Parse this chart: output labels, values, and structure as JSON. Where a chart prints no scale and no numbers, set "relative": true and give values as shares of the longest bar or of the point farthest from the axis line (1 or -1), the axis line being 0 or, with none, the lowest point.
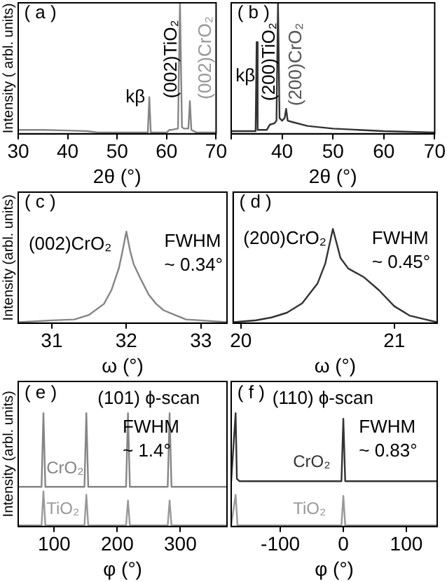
{
  "chart_data": [
    {
      "type": "line",
      "relative": true,
      "ylabel": "Intensity ( arbl. units)",
      "xlabel": "2θ (°)",
      "xlim": [
        30,
        70
      ],
      "xticks": [
        30,
        40,
        50,
        60,
        70
      ],
      "grid": false,
      "legend": false,
      "marker": "none",
      "annotations": [
        "( a )",
        {
          "text": "kβ",
          "x": 56.5,
          "y": 0.28
        },
        {
          "text": "(002)TiO₂",
          "x": 62.7,
          "y": 0.57
        },
        "(002)CrO₂"
      ],
      "series": [
        {
          "color": "#858585",
          "x": [
            30,
            35,
            40,
            44,
            46,
            50,
            55,
            56.2,
            56.5,
            56.8,
            58,
            60,
            60.6,
            61,
            62.3,
            62.7,
            63.1,
            63.5,
            64.4,
            64.7,
            65.0,
            66,
            70
          ],
          "values": [
            0.03,
            0.03,
            0.025,
            0.02,
            0.01,
            0.01,
            0.01,
            0.01,
            0.28,
            0.01,
            0.01,
            0.01,
            0.03,
            0.03,
            0.04,
            1,
            0.05,
            0.04,
            0.04,
            0.25,
            0.03,
            0.01,
            0.01
          ]
        }
      ]
    },
    {
      "type": "line",
      "relative": true,
      "xlabel": "2θ (°)",
      "xlim": [
        30,
        70
      ],
      "xticks": [
        {
          "value": 30,
          "label": null
        },
        40,
        50,
        60,
        70
      ],
      "grid": false,
      "legend": false,
      "marker": "none",
      "annotations": [
        "( b )",
        {
          "text": "kβ",
          "x": 35,
          "y": 0.44
        },
        {
          "text": "(200)TiO₂",
          "x": 39.2,
          "y": 0.55
        },
        {
          "text": "(200)CrO₂",
          "x": 40.8,
          "y": 0.53
        }
      ],
      "series": [
        {
          "color": "#333333",
          "x": [
            30,
            33,
            34.8,
            35,
            35.2,
            37,
            37.6,
            38.5,
            38.9,
            39.2,
            39.5,
            40,
            40.5,
            40.8,
            41.1,
            42,
            45,
            50,
            55,
            60,
            70
          ],
          "values": [
            0.02,
            0.02,
            0.02,
            0.7,
            0.03,
            0.03,
            0.07,
            0.08,
            0.1,
            1,
            0.12,
            0.1,
            0.12,
            0.19,
            0.1,
            0.09,
            0.06,
            0.04,
            0.03,
            0.02,
            0.01
          ]
        }
      ]
    },
    {
      "type": "line",
      "relative": true,
      "ylabel": "Intensity (arbl. units)",
      "xlabel": "ω (°)",
      "xlim": [
        30.55,
        33.35
      ],
      "xticks": [
        31,
        32,
        33
      ],
      "grid": false,
      "legend": false,
      "marker": "none",
      "annotations": [
        "( c )",
        "(002)CrO₂",
        "FWHM\n~ 0.34°"
      ],
      "series": [
        {
          "color": "#858585",
          "x": [
            30.55,
            31.0,
            31.3,
            31.5,
            31.7,
            31.8,
            31.9,
            31.95,
            32.0,
            32.05,
            32.1,
            32.2,
            32.3,
            32.4,
            32.5,
            32.65,
            32.8,
            33.0,
            33.35
          ],
          "values": [
            0.01,
            0.03,
            0.04,
            0.09,
            0.21,
            0.36,
            0.6,
            0.79,
            1,
            0.79,
            0.64,
            0.47,
            0.31,
            0.21,
            0.14,
            0.09,
            0.04,
            0.03,
            0.01
          ]
        }
      ]
    },
    {
      "type": "line",
      "relative": true,
      "xlabel": "ω (°)",
      "xlim": [
        19.95,
        21.28
      ],
      "xticks": [
        20,
        21
      ],
      "grid": false,
      "legend": false,
      "marker": "none",
      "annotations": [
        "( d )",
        "(200)CrO₂",
        "FWHM\n~ 0.45°"
      ],
      "series": [
        {
          "color": "#333333",
          "x": [
            19.95,
            20.1,
            20.2,
            20.3,
            20.4,
            20.5,
            20.55,
            20.6,
            20.65,
            20.7,
            20.8,
            20.9,
            21.0,
            21.1,
            21.2,
            21.28
          ],
          "values": [
            0.01,
            0.03,
            0.06,
            0.11,
            0.21,
            0.42,
            0.63,
            1,
            0.69,
            0.58,
            0.49,
            0.35,
            0.18,
            0.08,
            0.04,
            0.01
          ]
        }
      ]
    },
    {
      "type": "line",
      "relative": true,
      "ylabel": "Intensity (arbl. units)",
      "xlabel": "φ (°)",
      "xlim": [
        43,
        374
      ],
      "xticks": [
        100,
        200,
        300
      ],
      "grid": false,
      "legend": false,
      "marker": "none",
      "annotations": [
        "( e )",
        "(101) ϕ-scan",
        "FWHM\n~ 1.4°"
      ],
      "series": [
        {
          "name": "CrO₂",
          "color": "#858585",
          "x": [
            43,
            80,
            83,
            86,
            148,
            151,
            154,
            214,
            217,
            220,
            280,
            283,
            286,
            374
          ],
          "values": [
            0.35,
            0.35,
            1,
            0.35,
            0.35,
            1,
            0.35,
            0.35,
            1,
            0.35,
            0.35,
            1,
            0.35,
            0.35
          ]
        },
        {
          "name": "TiO₂",
          "color": "#999999",
          "x": [
            43,
            80,
            83,
            86,
            148,
            151,
            154,
            214,
            217,
            220,
            280,
            283,
            286,
            374
          ],
          "values": [
            0.01,
            0.01,
            0.31,
            0.01,
            0.01,
            0.28,
            0.01,
            0.01,
            0.23,
            0.01,
            0.01,
            0.23,
            0.01,
            0.01
          ]
        }
      ]
    },
    {
      "type": "line",
      "relative": true,
      "xlabel": "φ (°)",
      "xlim": [
        -178,
        149
      ],
      "xticks": [
        -100,
        0,
        100
      ],
      "grid": false,
      "legend": false,
      "marker": "none",
      "annotations": [
        "( f )",
        "(110) ϕ-scan",
        "FWHM\n~ 0.83°"
      ],
      "series": [
        {
          "name": "CrO₂",
          "color": "#333333",
          "x": [
            -178,
            -171,
            -169,
            -165,
            -3,
            0,
            3,
            149
          ],
          "values": [
            0.4,
            1,
            0.42,
            0.4,
            0.4,
            0.95,
            0.4,
            0.4
          ]
        },
        {
          "name": "TiO₂",
          "color": "#999999",
          "x": [
            -178,
            -171,
            -168,
            -3,
            0,
            3,
            149
          ],
          "values": [
            0.01,
            0.28,
            0.01,
            0.01,
            0.27,
            0.01,
            0.01
          ]
        }
      ]
    }
  ]
}
